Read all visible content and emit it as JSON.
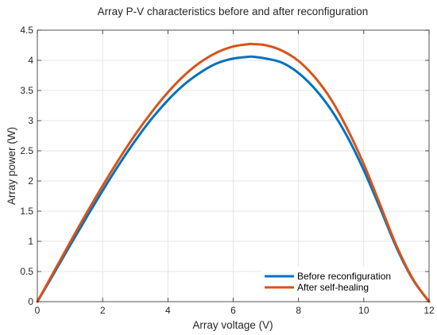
{
  "chart_data": {
    "type": "line",
    "title": "Array P-V characteristics before and after reconfiguration",
    "xlabel": "Array voltage (V)",
    "ylabel": "Array power (W)",
    "xlim": [
      0,
      12
    ],
    "ylim": [
      0,
      4.5
    ],
    "xticks": [
      0,
      2,
      4,
      6,
      8,
      10,
      12
    ],
    "xtick_labels": [
      "0",
      "2",
      "4",
      "6",
      "8",
      "10",
      "12"
    ],
    "yticks": [
      0,
      0.5,
      1,
      1.5,
      2,
      2.5,
      3,
      3.5,
      4,
      4.5
    ],
    "ytick_labels": [
      "0",
      "0.5",
      "1",
      "1.5",
      "2",
      "2.5",
      "3",
      "3.5",
      "4",
      "4.5"
    ],
    "grid": true,
    "legend_position": "bottom-right",
    "series": [
      {
        "name": "Before reconfiguration",
        "color": "#0072BD",
        "x": [
          0,
          0.5,
          1,
          1.5,
          2,
          2.5,
          3,
          3.5,
          4,
          4.5,
          5,
          5.5,
          6,
          6.5,
          6.6,
          7,
          7.5,
          8,
          8.5,
          9,
          9.5,
          10,
          10.5,
          11,
          11.5,
          12
        ],
        "y": [
          0,
          0.46,
          0.93,
          1.39,
          1.84,
          2.27,
          2.67,
          3.03,
          3.34,
          3.6,
          3.8,
          3.95,
          4.03,
          4.06,
          4.06,
          4.03,
          3.96,
          3.79,
          3.53,
          3.18,
          2.73,
          2.18,
          1.55,
          0.9,
          0.37,
          0
        ]
      },
      {
        "name": "After self-healing",
        "color": "#D95319",
        "x": [
          0,
          0.5,
          1,
          1.5,
          2,
          2.5,
          3,
          3.5,
          4,
          4.5,
          5,
          5.5,
          6,
          6.5,
          6.6,
          7,
          7.5,
          8,
          8.5,
          9,
          9.5,
          10,
          10.5,
          11,
          11.5,
          12
        ],
        "y": [
          0,
          0.49,
          0.98,
          1.46,
          1.92,
          2.36,
          2.77,
          3.14,
          3.47,
          3.75,
          3.97,
          4.13,
          4.23,
          4.27,
          4.27,
          4.25,
          4.16,
          3.99,
          3.72,
          3.35,
          2.86,
          2.28,
          1.61,
          0.93,
          0.38,
          0
        ]
      }
    ]
  }
}
